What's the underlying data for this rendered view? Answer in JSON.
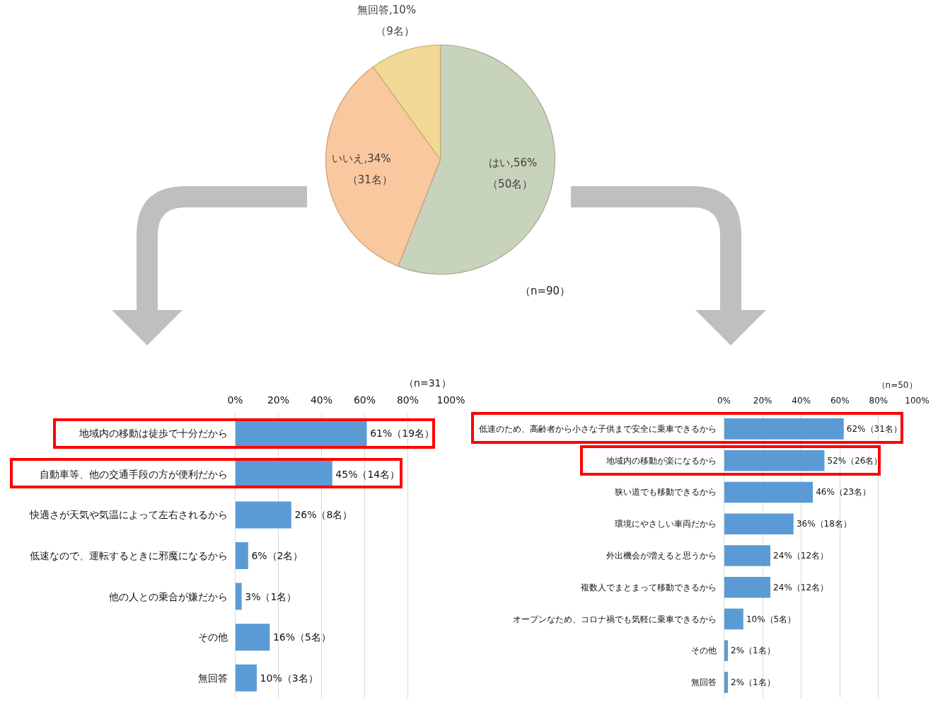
{
  "chart_data": [
    {
      "type": "pie",
      "categories": [
        "はい",
        "いいえ",
        "無回答"
      ],
      "values": [
        56,
        34,
        10
      ],
      "colors": [
        "#c8d3bc",
        "#f9c89f",
        "#f1d995"
      ],
      "value_labels": [
        ",56%\n（50名）",
        ",34%\n（31名）",
        ",10%\n（9名）"
      ],
      "annotations": [
        "（n=90）"
      ]
    },
    {
      "type": "bar",
      "orientation": "horizontal",
      "categories": [
        "地域内の移動は徒歩で十分だから",
        "自動車等、他の交通手段の方が便利だから",
        "快適さが天気や気温によって左右されるから",
        "低速なので、運転するときに邪魔になるから",
        "他の人との乗合が嫌だから",
        "その他",
        "無回答"
      ],
      "values": [
        61,
        45,
        26,
        6,
        3,
        16,
        10
      ],
      "color": "#5b9bd5",
      "value_labels": [
        "61%（19名）",
        "45%（14名）",
        "26%（8名）",
        "6%（2名）",
        "3%（1名）",
        "16%（5名）",
        "10%（3名）"
      ],
      "xlim": [
        0,
        100
      ],
      "xticks": [
        {
          "value": 0,
          "label": "0%"
        },
        {
          "value": 20,
          "label": "20%"
        },
        {
          "value": 40,
          "label": "40%"
        },
        {
          "value": 60,
          "label": "60%"
        },
        {
          "value": 80,
          "label": "80%"
        },
        {
          "value": 100,
          "label": "100%"
        }
      ],
      "grid": "x",
      "annotations": [
        "（n=31）"
      ]
    },
    {
      "type": "bar",
      "orientation": "horizontal",
      "categories": [
        "低速のため、高齢者から小さな子供まで安全に乗車できるから",
        "地域内の移動が楽になるから",
        "狭い道でも移動できるから",
        "環境にやさしい車両だから",
        "外出機会が増えると思うから",
        "複数人でまとまって移動できるから",
        "オープンなため、コロナ禍でも気軽に乗車できるから",
        "その他",
        "無回答"
      ],
      "values": [
        62,
        52,
        46,
        36,
        24,
        24,
        10,
        2,
        2
      ],
      "color": "#5b9bd5",
      "value_labels": [
        "62%（31名）",
        "52%（26名）",
        "46%（23名）",
        "36%（18名）",
        "24%（12名）",
        "24%（12名）",
        "10%（5名）",
        "2%（1名）",
        "2%（1名）"
      ],
      "xlim": [
        0,
        100
      ],
      "xticks": [
        {
          "value": 0,
          "label": "0%"
        },
        {
          "value": 20,
          "label": "20%"
        },
        {
          "value": 40,
          "label": "40%"
        },
        {
          "value": 60,
          "label": "60%"
        },
        {
          "value": 80,
          "label": "80%"
        },
        {
          "value": 100,
          "label": "100%"
        }
      ],
      "grid": "x",
      "annotations": [
        "（n=50）"
      ]
    }
  ]
}
